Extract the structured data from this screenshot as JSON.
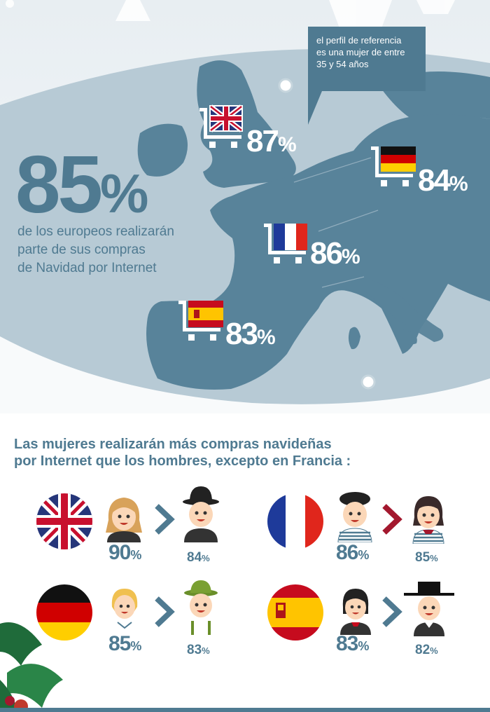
{
  "headline": {
    "percent": "85",
    "symbol": "%",
    "lines": [
      "de los europeos realizarán",
      "parte de sus compras",
      "de Navidad por Internet"
    ]
  },
  "callout": {
    "lines": [
      "el perfil de referencia",
      "es una mujer de entre",
      "35 y 54 años"
    ]
  },
  "countries": {
    "uk": {
      "percent": "87",
      "symbol": "%",
      "flag_icon": "uk-flag-icon"
    },
    "de": {
      "percent": "84",
      "symbol": "%",
      "flag_icon": "germany-flag-icon"
    },
    "fr": {
      "percent": "86",
      "symbol": "%",
      "flag_icon": "france-flag-icon"
    },
    "es": {
      "percent": "83",
      "symbol": "%",
      "flag_icon": "spain-flag-icon"
    }
  },
  "section_title": {
    "lines": [
      "Las mujeres realizarán más compras navideñas",
      "por Internet que los hombres, excepto en Francia :"
    ]
  },
  "comparisons": {
    "uk": {
      "first": "90",
      "second": "84",
      "symbol": "%",
      "arrow_color": "#4f7a91"
    },
    "fr": {
      "first": "86",
      "second": "85",
      "symbol": "%",
      "arrow_color": "#a3182e"
    },
    "de": {
      "first": "85",
      "second": "83",
      "symbol": "%",
      "arrow_color": "#4f7a91"
    },
    "es": {
      "first": "83",
      "second": "82",
      "symbol": "%",
      "arrow_color": "#4f7a91"
    }
  },
  "colors": {
    "primary": "#4f7a91",
    "map_land": "#58839a",
    "map_sea": "#b7cad5",
    "sky": "#edf2f5"
  }
}
